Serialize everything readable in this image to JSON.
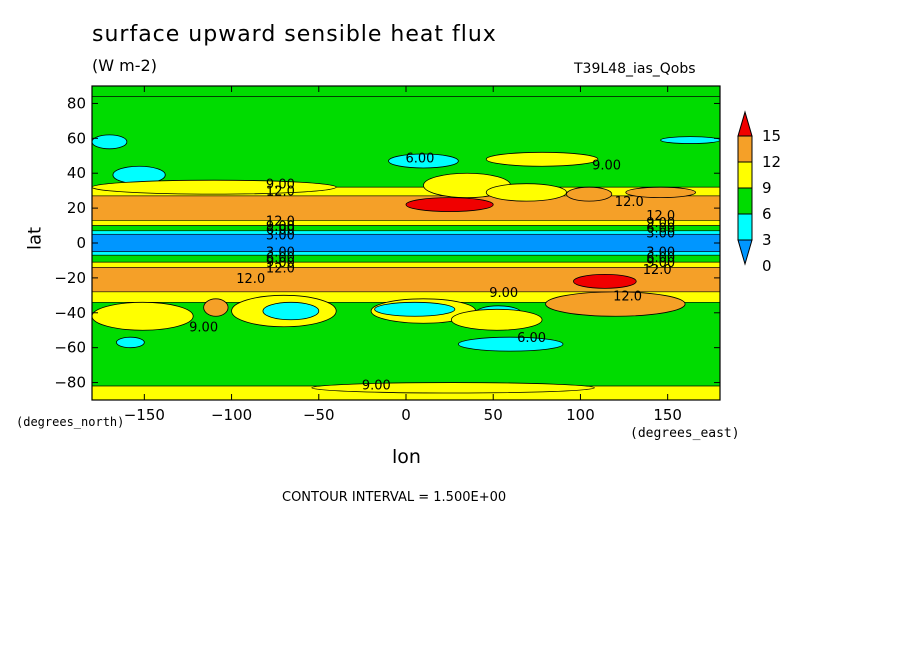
{
  "chart_data": {
    "type": "heatmap",
    "title": "surface upward sensible heat flux",
    "units_label": "(W m-2)",
    "run_label": "T39L48_ias_Qobs",
    "xlabel": "lon",
    "ylabel": "lat",
    "x_unit_label": "(degrees_east)",
    "y_unit_label": "(degrees_north)",
    "xlim": [
      -180,
      180
    ],
    "ylim": [
      -90,
      90
    ],
    "xticks": [
      "-150",
      "-100",
      "-50",
      "0",
      "50",
      "100",
      "150"
    ],
    "yticks": [
      "80",
      "60",
      "40",
      "20",
      "0",
      "-20",
      "-40",
      "-60",
      "-80"
    ],
    "contour_interval_text": "CONTOUR INTERVAL = 1.500E+00",
    "colorbar": {
      "levels": [
        "15",
        "12",
        "9",
        "6",
        "3",
        "0"
      ],
      "colors": [
        "#f00000",
        "#f5a028",
        "#ffff00",
        "#00dc00",
        "#00ffff",
        "#0096ff"
      ]
    },
    "bands": [
      {
        "lat": [
          84,
          90
        ],
        "value": 7
      },
      {
        "lat": [
          32,
          84
        ],
        "value": 7
      },
      {
        "lat": [
          27,
          32
        ],
        "value": 10
      },
      {
        "lat": [
          13,
          27
        ],
        "value": 13
      },
      {
        "lat": [
          10,
          13
        ],
        "value": 10
      },
      {
        "lat": [
          7,
          10
        ],
        "value": 7
      },
      {
        "lat": [
          5,
          7
        ],
        "value": 4
      },
      {
        "lat": [
          -5,
          5
        ],
        "value": 1
      },
      {
        "lat": [
          -7,
          -5
        ],
        "value": 4
      },
      {
        "lat": [
          -11,
          -7
        ],
        "value": 7
      },
      {
        "lat": [
          -14,
          -11
        ],
        "value": 10
      },
      {
        "lat": [
          -28,
          -14
        ],
        "value": 13
      },
      {
        "lat": [
          -34,
          -28
        ],
        "value": 10
      },
      {
        "lat": [
          -82,
          -34
        ],
        "value": 7
      },
      {
        "lat": [
          -90,
          -82
        ],
        "value": 10
      }
    ],
    "regions": [
      {
        "lon": [
          -180,
          -122
        ],
        "lat": [
          -50,
          -34
        ],
        "value": 10
      },
      {
        "lon": [
          -116,
          -102
        ],
        "lat": [
          -42,
          -32
        ],
        "value": 13
      },
      {
        "lon": [
          -100,
          -40
        ],
        "lat": [
          -48,
          -30
        ],
        "value": 10
      },
      {
        "lon": [
          -82,
          -50
        ],
        "lat": [
          -44,
          -34
        ],
        "value": 4
      },
      {
        "lon": [
          -20,
          40
        ],
        "lat": [
          -46,
          -32
        ],
        "value": 10
      },
      {
        "lon": [
          -18,
          28
        ],
        "lat": [
          -42,
          -34
        ],
        "value": 4
      },
      {
        "lon": [
          40,
          66
        ],
        "lat": [
          -44,
          -36
        ],
        "value": 4
      },
      {
        "lon": [
          26,
          78
        ],
        "lat": [
          -50,
          -38
        ],
        "value": 10
      },
      {
        "lon": [
          80,
          160
        ],
        "lat": [
          -42,
          -28
        ],
        "value": 13
      },
      {
        "lon": [
          96,
          132
        ],
        "lat": [
          -26,
          -18
        ],
        "value": 16
      },
      {
        "lon": [
          -166,
          -150
        ],
        "lat": [
          -60,
          -54
        ],
        "value": 4
      },
      {
        "lon": [
          30,
          90
        ],
        "lat": [
          -62,
          -54
        ],
        "value": 4
      },
      {
        "lon": [
          -54,
          108
        ],
        "lat": [
          -86,
          -80
        ],
        "value": 10
      },
      {
        "lon": [
          -168,
          -138
        ],
        "lat": [
          34,
          44
        ],
        "value": 4
      },
      {
        "lon": [
          -180,
          -40
        ],
        "lat": [
          28,
          36
        ],
        "value": 10
      },
      {
        "lon": [
          10,
          60
        ],
        "lat": [
          26,
          40
        ],
        "value": 10
      },
      {
        "lon": [
          0,
          50
        ],
        "lat": [
          18,
          26
        ],
        "value": 16
      },
      {
        "lon": [
          46,
          92
        ],
        "lat": [
          24,
          34
        ],
        "value": 10
      },
      {
        "lon": [
          92,
          118
        ],
        "lat": [
          24,
          32
        ],
        "value": 13
      },
      {
        "lon": [
          126,
          166
        ],
        "lat": [
          26,
          32
        ],
        "value": 13
      },
      {
        "lon": [
          46,
          110
        ],
        "lat": [
          44,
          52
        ],
        "value": 10
      },
      {
        "lon": [
          -10,
          30
        ],
        "lat": [
          43,
          51
        ],
        "value": 4
      },
      {
        "lon": [
          -180,
          -160
        ],
        "lat": [
          54,
          62
        ],
        "value": 4
      },
      {
        "lon": [
          146,
          180
        ],
        "lat": [
          57,
          61
        ],
        "value": 4
      }
    ],
    "contour_labels": [
      {
        "text": "6.00",
        "lon": 8,
        "lat": 49
      },
      {
        "text": "9.00",
        "lon": 115,
        "lat": 45
      },
      {
        "text": "9.00",
        "lon": -72,
        "lat": 34
      },
      {
        "text": "12.0",
        "lon": -72,
        "lat": 30
      },
      {
        "text": "12.0",
        "lon": 128,
        "lat": 24
      },
      {
        "text": "12.0",
        "lon": -72,
        "lat": 13
      },
      {
        "text": "9.00",
        "lon": -72,
        "lat": 10
      },
      {
        "text": "6.00",
        "lon": -72,
        "lat": 8
      },
      {
        "text": "3.00",
        "lon": -72,
        "lat": 5
      },
      {
        "text": "12.0",
        "lon": 146,
        "lat": 16
      },
      {
        "text": "9.00",
        "lon": 146,
        "lat": 12
      },
      {
        "text": "6.00",
        "lon": 146,
        "lat": 9
      },
      {
        "text": "3.00",
        "lon": 146,
        "lat": 6
      },
      {
        "text": "3.00",
        "lon": -72,
        "lat": -5
      },
      {
        "text": "6.00",
        "lon": -72,
        "lat": -8
      },
      {
        "text": "9.00",
        "lon": -72,
        "lat": -11
      },
      {
        "text": "12.0",
        "lon": -72,
        "lat": -14
      },
      {
        "text": "3.00",
        "lon": 146,
        "lat": -5
      },
      {
        "text": "6.00",
        "lon": 146,
        "lat": -8
      },
      {
        "text": "9.00",
        "lon": 146,
        "lat": -11
      },
      {
        "text": "12.0",
        "lon": 144,
        "lat": -15
      },
      {
        "text": "12.0",
        "lon": -89,
        "lat": -20
      },
      {
        "text": "9.00",
        "lon": 56,
        "lat": -28
      },
      {
        "text": "12.0",
        "lon": 127,
        "lat": -30
      },
      {
        "text": "9.00",
        "lon": -116,
        "lat": -48
      },
      {
        "text": "6.00",
        "lon": 72,
        "lat": -54
      },
      {
        "text": "9.00",
        "lon": -17,
        "lat": -81
      }
    ]
  }
}
